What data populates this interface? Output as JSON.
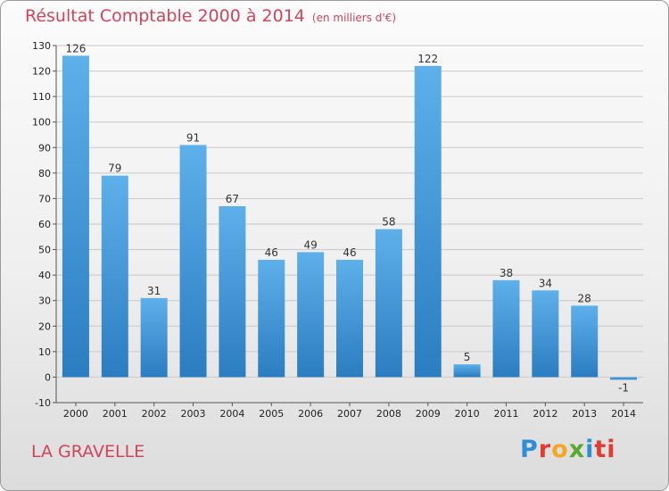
{
  "header": {
    "title": "Résultat Comptable 2000 à 2014",
    "subtitle": "(en milliers d'€)"
  },
  "footer": {
    "commune": "LA GRAVELLE",
    "logo_letters": [
      "P",
      "r",
      "o",
      "x",
      "i",
      "ti"
    ]
  },
  "colors": {
    "bar_top": "#5eb0ea",
    "bar_bottom": "#2a7dc0",
    "title": "#d0455a",
    "grid": "#c8c8c8"
  },
  "chart_data": {
    "type": "bar",
    "title": "Résultat Comptable 2000 à 2014",
    "subtitle": "(en milliers d'€)",
    "categories": [
      "2000",
      "2001",
      "2002",
      "2003",
      "2004",
      "2005",
      "2006",
      "2007",
      "2008",
      "2009",
      "2010",
      "2011",
      "2012",
      "2013",
      "2014"
    ],
    "values": [
      126,
      79,
      31,
      91,
      67,
      46,
      49,
      46,
      58,
      122,
      5,
      38,
      34,
      28,
      -1
    ],
    "data_labels": [
      "126",
      "79",
      "31",
      "91",
      "67",
      "46",
      "49",
      "46",
      "58",
      "122",
      "5",
      "38",
      "34",
      "28",
      "-1"
    ],
    "yticks": [
      -10,
      0,
      10,
      20,
      30,
      40,
      50,
      60,
      70,
      80,
      90,
      100,
      110,
      120,
      130
    ],
    "ylim": [
      -10,
      130
    ],
    "grid": true,
    "xlabel": "",
    "ylabel": ""
  }
}
